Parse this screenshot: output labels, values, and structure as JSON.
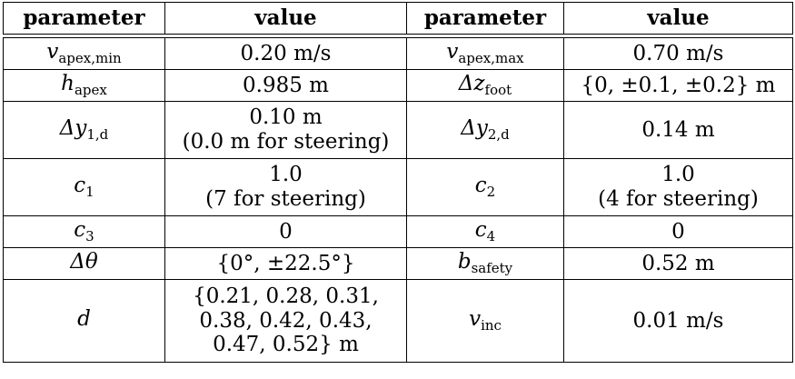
{
  "header": {
    "col1": "parameter",
    "col2": "value",
    "col3": "parameter",
    "col4": "value"
  },
  "rows": [
    {
      "p1_sym": "v",
      "p1_sub": "apex,min",
      "v1_lines": [
        "0.20 m/s"
      ],
      "p2_sym": "v",
      "p2_sub": "apex,max",
      "v2_lines": [
        "0.70 m/s"
      ]
    },
    {
      "p1_sym": "h",
      "p1_sub": "apex",
      "v1_lines": [
        "0.985 m"
      ],
      "p2_sym": "Δz",
      "p2_sub": "foot",
      "v2_lines": [
        "{0, ±0.1, ±0.2} m"
      ]
    },
    {
      "p1_sym": "Δy",
      "p1_sub": "1,d",
      "v1_lines": [
        "0.10 m",
        "(0.0 m for steering)"
      ],
      "p2_sym": "Δy",
      "p2_sub": "2,d",
      "v2_lines": [
        "0.14 m"
      ]
    },
    {
      "p1_sym": "c",
      "p1_sub": "1",
      "v1_lines": [
        "1.0",
        "(7 for steering)"
      ],
      "p2_sym": "c",
      "p2_sub": "2",
      "v2_lines": [
        "1.0",
        "(4 for steering)"
      ]
    },
    {
      "p1_sym": "c",
      "p1_sub": "3",
      "v1_lines": [
        "0"
      ],
      "p2_sym": "c",
      "p2_sub": "4",
      "v2_lines": [
        "0"
      ]
    },
    {
      "p1_sym": "Δθ",
      "p1_sub": "",
      "v1_lines": [
        "{0°, ±22.5°}"
      ],
      "p2_sym": "b",
      "p2_sub": "safety",
      "v2_lines": [
        "0.52 m"
      ]
    },
    {
      "p1_sym": "d",
      "p1_sub": "",
      "v1_lines": [
        "{0.21, 0.28, 0.31,",
        "0.38, 0.42, 0.43,",
        "0.47, 0.52} m"
      ],
      "p2_sym": "v",
      "p2_sub": "inc",
      "v2_lines": [
        "0.01 m/s"
      ]
    }
  ]
}
